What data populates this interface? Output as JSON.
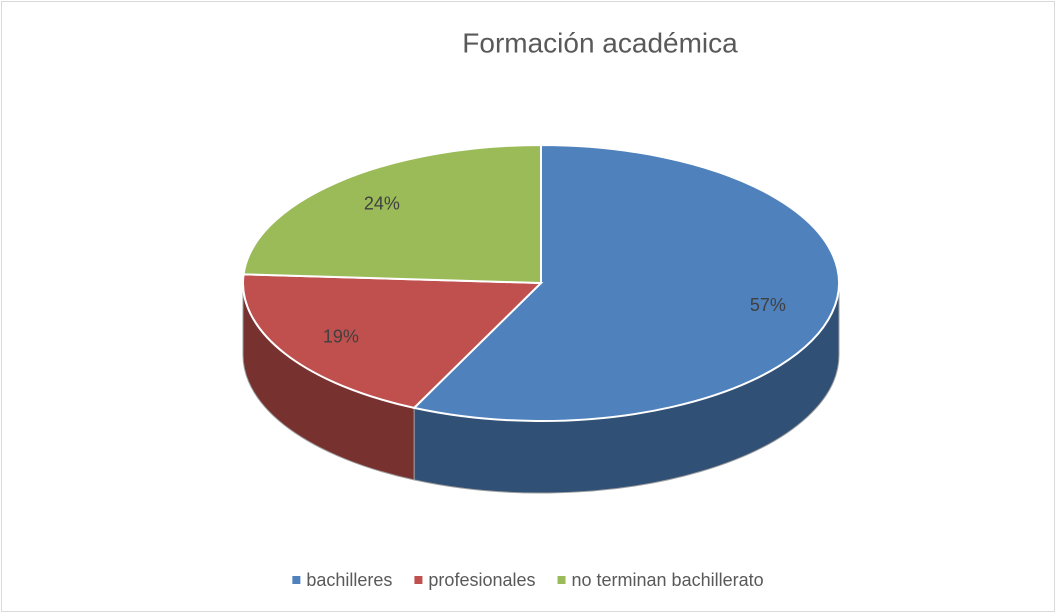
{
  "chart_data": {
    "type": "pie",
    "title": "Formación académica",
    "categories": [
      "bachilleres",
      "profesionales",
      "no terminan bachillerato"
    ],
    "values": [
      57,
      19,
      24
    ],
    "value_labels": [
      "57%",
      "19%",
      "24%"
    ],
    "colors": [
      "#4f81bd",
      "#c0504d",
      "#9bbb59"
    ],
    "legend": "bottom"
  }
}
